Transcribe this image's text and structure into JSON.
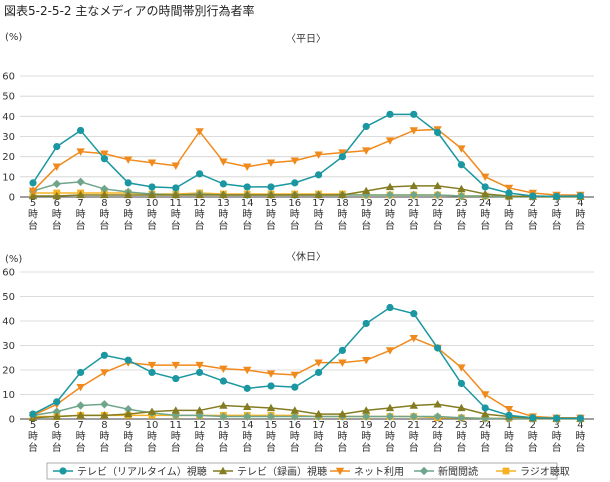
{
  "title": "図表5-2-5-2 主なメディアの時間帯別行為者率",
  "legend": {
    "items": [
      {
        "label": "テレビ（リアルタイム）視聴",
        "color": "#1a97a0",
        "marker": "circle"
      },
      {
        "label": "テレビ（録画）視聴",
        "color": "#847c22",
        "marker": "triangle-up"
      },
      {
        "label": "ネット利用",
        "color": "#f08a1c",
        "marker": "triangle-down"
      },
      {
        "label": "新聞閲読",
        "color": "#6fa68b",
        "marker": "diamond"
      },
      {
        "label": "ラジオ聴取",
        "color": "#f5b324",
        "marker": "square"
      }
    ]
  },
  "chart_data": [
    {
      "type": "line",
      "title": "〈平日〉",
      "ylabel": "(%)",
      "ylim": [
        0,
        60
      ],
      "yticks": [
        0,
        10,
        20,
        30,
        40,
        50,
        60
      ],
      "grid": true,
      "categories": [
        "5時台",
        "6時台",
        "7時台",
        "8時台",
        "9時台",
        "10時台",
        "11時台",
        "12時台",
        "13時台",
        "14時台",
        "15時台",
        "16時台",
        "17時台",
        "18時台",
        "19時台",
        "20時台",
        "21時台",
        "22時台",
        "23時台",
        "24時台",
        "1時台",
        "2時台",
        "3時台",
        "4時台"
      ],
      "series": [
        {
          "name": "テレビ（リアルタイム）視聴",
          "values": [
            7,
            25,
            33,
            19,
            7,
            5,
            4.5,
            11.5,
            6.5,
            5,
            5,
            7,
            11,
            20,
            35,
            41,
            41,
            32,
            16,
            5,
            2,
            0.5,
            0.3,
            0.5
          ]
        },
        {
          "name": "テレビ（録画）視聴",
          "values": [
            0.5,
            0.5,
            1,
            1,
            1,
            1,
            1,
            1,
            1,
            1,
            1,
            1,
            1,
            1,
            3,
            5,
            5.5,
            5.5,
            4,
            1.5,
            0.5,
            0.2,
            0.2,
            0.2
          ]
        },
        {
          "name": "ネット利用",
          "values": [
            3,
            15,
            22.5,
            21.5,
            18.5,
            17,
            15.5,
            32.5,
            17.5,
            15,
            17,
            18,
            21,
            22,
            23,
            28,
            33,
            33.5,
            24,
            10,
            4.5,
            2,
            1,
            1
          ]
        },
        {
          "name": "新聞閲読",
          "values": [
            3,
            6.5,
            7.5,
            4,
            2.5,
            1.5,
            1,
            1.5,
            1,
            1,
            1,
            1,
            1,
            1,
            1,
            1,
            1,
            1,
            0.5,
            0.5,
            0.2,
            0.2,
            0.2,
            0.2
          ]
        },
        {
          "name": "ラジオ聴取",
          "values": [
            2,
            2,
            2,
            2,
            2,
            1.5,
            1.5,
            2,
            1.5,
            1.5,
            1.5,
            1.5,
            1.5,
            1.5,
            1,
            1,
            1,
            1,
            0.5,
            0.5,
            0.3,
            0.3,
            0.2,
            0.2
          ]
        }
      ]
    },
    {
      "type": "line",
      "title": "〈休日〉",
      "ylabel": "(%)",
      "ylim": [
        0,
        60
      ],
      "yticks": [
        0,
        10,
        20,
        30,
        40,
        50,
        60
      ],
      "grid": true,
      "categories": [
        "5時台",
        "6時台",
        "7時台",
        "8時台",
        "9時台",
        "10時台",
        "11時台",
        "12時台",
        "13時台",
        "14時台",
        "15時台",
        "16時台",
        "17時台",
        "18時台",
        "19時台",
        "20時台",
        "21時台",
        "22時台",
        "23時台",
        "24時台",
        "1時台",
        "2時台",
        "3時台",
        "4時台"
      ],
      "series": [
        {
          "name": "テレビ（リアルタイム）視聴",
          "values": [
            2,
            7,
            19,
            26,
            24,
            19,
            16.5,
            19,
            15.5,
            12.5,
            13.5,
            13,
            19,
            28,
            39,
            45.5,
            43,
            29,
            14.5,
            4.5,
            1.5,
            0.5,
            0.3,
            0.3
          ]
        },
        {
          "name": "テレビ（録画）視聴",
          "values": [
            0.5,
            1,
            1.5,
            1.5,
            2,
            3,
            3.5,
            3.5,
            5.5,
            5,
            4.5,
            3.5,
            2,
            2,
            3.5,
            4.5,
            5.5,
            6,
            4.5,
            2,
            1,
            0.3,
            0.2,
            0.2
          ]
        },
        {
          "name": "ネット利用",
          "values": [
            1.5,
            6,
            13,
            19,
            23,
            22,
            22,
            22,
            20.5,
            20,
            18.5,
            18,
            23,
            23,
            24,
            28,
            33,
            29,
            21,
            10,
            4,
            1,
            0.5,
            0.5
          ]
        },
        {
          "name": "新聞閲読",
          "values": [
            1.5,
            3,
            5.5,
            6,
            4,
            2.5,
            1.5,
            1.5,
            1,
            1,
            1,
            1,
            1,
            1,
            1,
            1,
            1,
            1,
            0.5,
            0.2,
            0.2,
            0.2,
            0.1,
            0.1
          ]
        },
        {
          "name": "ラジオ聴取",
          "values": [
            1,
            1,
            1.5,
            1.5,
            1.5,
            1.5,
            1.5,
            1.5,
            1.5,
            1.5,
            1.5,
            1.5,
            1,
            1,
            1,
            1,
            1,
            0.5,
            0.5,
            0.3,
            0.3,
            0.2,
            0.1,
            0.1
          ]
        }
      ]
    }
  ]
}
